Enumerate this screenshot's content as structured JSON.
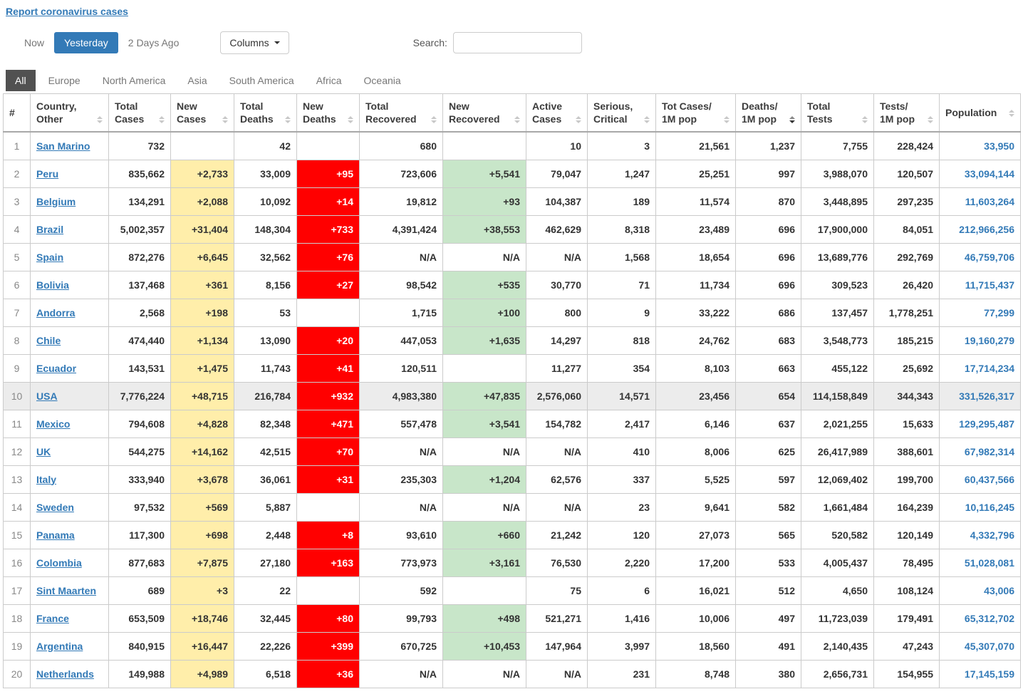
{
  "page": {
    "report_link": "Report coronavirus cases"
  },
  "toolbar": {
    "tabs": [
      {
        "label": "Now",
        "active": false
      },
      {
        "label": "Yesterday",
        "active": true
      },
      {
        "label": "2 Days Ago",
        "active": false
      }
    ],
    "columns_button": "Columns",
    "search_label": "Search:",
    "search_value": ""
  },
  "continents": [
    {
      "label": "All",
      "active": true
    },
    {
      "label": "Europe",
      "active": false
    },
    {
      "label": "North America",
      "active": false
    },
    {
      "label": "Asia",
      "active": false
    },
    {
      "label": "South America",
      "active": false
    },
    {
      "label": "Africa",
      "active": false
    },
    {
      "label": "Oceania",
      "active": false
    }
  ],
  "colors": {
    "accent_blue": "#337ab7",
    "new_cases_bg": "#FFEEAA",
    "new_deaths_bg": "#FF0000",
    "new_recovered_bg": "#C8E6C9",
    "active_tab_bg": "#515151"
  },
  "table": {
    "headers": [
      {
        "key": "rank",
        "line1": "#",
        "line2": "",
        "sortable": false
      },
      {
        "key": "country",
        "line1": "Country,",
        "line2": "Other"
      },
      {
        "key": "total-cases",
        "line1": "Total",
        "line2": "Cases"
      },
      {
        "key": "new-cases",
        "line1": "New",
        "line2": "Cases"
      },
      {
        "key": "total-deaths",
        "line1": "Total",
        "line2": "Deaths"
      },
      {
        "key": "new-deaths",
        "line1": "New",
        "line2": "Deaths"
      },
      {
        "key": "total-recovered",
        "line1": "Total",
        "line2": "Recovered"
      },
      {
        "key": "new-recovered",
        "line1": "New",
        "line2": "Recovered"
      },
      {
        "key": "active-cases",
        "line1": "Active",
        "line2": "Cases"
      },
      {
        "key": "serious-critical",
        "line1": "Serious,",
        "line2": "Critical"
      },
      {
        "key": "tot-cases-1m",
        "line1": "Tot Cases/",
        "line2": "1M pop"
      },
      {
        "key": "deaths-1m",
        "line1": "Deaths/",
        "line2": "1M pop",
        "sorted": "desc"
      },
      {
        "key": "total-tests",
        "line1": "Total",
        "line2": "Tests"
      },
      {
        "key": "tests-1m",
        "line1": "Tests/",
        "line2": "1M pop"
      },
      {
        "key": "population",
        "line1": "Population",
        "line2": ""
      }
    ],
    "rows": [
      {
        "rank": "1",
        "country": "San Marino",
        "total_cases": "732",
        "new_cases": "",
        "total_deaths": "42",
        "new_deaths": "",
        "total_recovered": "680",
        "new_recovered": "",
        "active_cases": "10",
        "serious_critical": "3",
        "cases_per_1m": "21,561",
        "deaths_per_1m": "1,237",
        "total_tests": "7,755",
        "tests_per_1m": "228,424",
        "population": "33,950"
      },
      {
        "rank": "2",
        "country": "Peru",
        "total_cases": "835,662",
        "new_cases": "+2,733",
        "total_deaths": "33,009",
        "new_deaths": "+95",
        "total_recovered": "723,606",
        "new_recovered": "+5,541",
        "active_cases": "79,047",
        "serious_critical": "1,247",
        "cases_per_1m": "25,251",
        "deaths_per_1m": "997",
        "total_tests": "3,988,070",
        "tests_per_1m": "120,507",
        "population": "33,094,144"
      },
      {
        "rank": "3",
        "country": "Belgium",
        "total_cases": "134,291",
        "new_cases": "+2,088",
        "total_deaths": "10,092",
        "new_deaths": "+14",
        "total_recovered": "19,812",
        "new_recovered": "+93",
        "active_cases": "104,387",
        "serious_critical": "189",
        "cases_per_1m": "11,574",
        "deaths_per_1m": "870",
        "total_tests": "3,448,895",
        "tests_per_1m": "297,235",
        "population": "11,603,264"
      },
      {
        "rank": "4",
        "country": "Brazil",
        "total_cases": "5,002,357",
        "new_cases": "+31,404",
        "total_deaths": "148,304",
        "new_deaths": "+733",
        "total_recovered": "4,391,424",
        "new_recovered": "+38,553",
        "active_cases": "462,629",
        "serious_critical": "8,318",
        "cases_per_1m": "23,489",
        "deaths_per_1m": "696",
        "total_tests": "17,900,000",
        "tests_per_1m": "84,051",
        "population": "212,966,256"
      },
      {
        "rank": "5",
        "country": "Spain",
        "total_cases": "872,276",
        "new_cases": "+6,645",
        "total_deaths": "32,562",
        "new_deaths": "+76",
        "total_recovered": "N/A",
        "new_recovered": "N/A",
        "active_cases": "N/A",
        "serious_critical": "1,568",
        "cases_per_1m": "18,654",
        "deaths_per_1m": "696",
        "total_tests": "13,689,776",
        "tests_per_1m": "292,769",
        "population": "46,759,706"
      },
      {
        "rank": "6",
        "country": "Bolivia",
        "total_cases": "137,468",
        "new_cases": "+361",
        "total_deaths": "8,156",
        "new_deaths": "+27",
        "total_recovered": "98,542",
        "new_recovered": "+535",
        "active_cases": "30,770",
        "serious_critical": "71",
        "cases_per_1m": "11,734",
        "deaths_per_1m": "696",
        "total_tests": "309,523",
        "tests_per_1m": "26,420",
        "population": "11,715,437"
      },
      {
        "rank": "7",
        "country": "Andorra",
        "total_cases": "2,568",
        "new_cases": "+198",
        "total_deaths": "53",
        "new_deaths": "",
        "total_recovered": "1,715",
        "new_recovered": "+100",
        "active_cases": "800",
        "serious_critical": "9",
        "cases_per_1m": "33,222",
        "deaths_per_1m": "686",
        "total_tests": "137,457",
        "tests_per_1m": "1,778,251",
        "population": "77,299"
      },
      {
        "rank": "8",
        "country": "Chile",
        "total_cases": "474,440",
        "new_cases": "+1,134",
        "total_deaths": "13,090",
        "new_deaths": "+20",
        "total_recovered": "447,053",
        "new_recovered": "+1,635",
        "active_cases": "14,297",
        "serious_critical": "818",
        "cases_per_1m": "24,762",
        "deaths_per_1m": "683",
        "total_tests": "3,548,773",
        "tests_per_1m": "185,215",
        "population": "19,160,279"
      },
      {
        "rank": "9",
        "country": "Ecuador",
        "total_cases": "143,531",
        "new_cases": "+1,475",
        "total_deaths": "11,743",
        "new_deaths": "+41",
        "total_recovered": "120,511",
        "new_recovered": "",
        "active_cases": "11,277",
        "serious_critical": "354",
        "cases_per_1m": "8,103",
        "deaths_per_1m": "663",
        "total_tests": "455,122",
        "tests_per_1m": "25,692",
        "population": "17,714,234"
      },
      {
        "rank": "10",
        "country": "USA",
        "highlight": true,
        "total_cases": "7,776,224",
        "new_cases": "+48,715",
        "total_deaths": "216,784",
        "new_deaths": "+932",
        "total_recovered": "4,983,380",
        "new_recovered": "+47,835",
        "active_cases": "2,576,060",
        "serious_critical": "14,571",
        "cases_per_1m": "23,456",
        "deaths_per_1m": "654",
        "total_tests": "114,158,849",
        "tests_per_1m": "344,343",
        "population": "331,526,317"
      },
      {
        "rank": "11",
        "country": "Mexico",
        "total_cases": "794,608",
        "new_cases": "+4,828",
        "total_deaths": "82,348",
        "new_deaths": "+471",
        "total_recovered": "557,478",
        "new_recovered": "+3,541",
        "active_cases": "154,782",
        "serious_critical": "2,417",
        "cases_per_1m": "6,146",
        "deaths_per_1m": "637",
        "total_tests": "2,021,255",
        "tests_per_1m": "15,633",
        "population": "129,295,487"
      },
      {
        "rank": "12",
        "country": "UK",
        "total_cases": "544,275",
        "new_cases": "+14,162",
        "total_deaths": "42,515",
        "new_deaths": "+70",
        "total_recovered": "N/A",
        "new_recovered": "N/A",
        "active_cases": "N/A",
        "serious_critical": "410",
        "cases_per_1m": "8,006",
        "deaths_per_1m": "625",
        "total_tests": "26,417,989",
        "tests_per_1m": "388,601",
        "population": "67,982,314"
      },
      {
        "rank": "13",
        "country": "Italy",
        "total_cases": "333,940",
        "new_cases": "+3,678",
        "total_deaths": "36,061",
        "new_deaths": "+31",
        "total_recovered": "235,303",
        "new_recovered": "+1,204",
        "active_cases": "62,576",
        "serious_critical": "337",
        "cases_per_1m": "5,525",
        "deaths_per_1m": "597",
        "total_tests": "12,069,402",
        "tests_per_1m": "199,700",
        "population": "60,437,566"
      },
      {
        "rank": "14",
        "country": "Sweden",
        "total_cases": "97,532",
        "new_cases": "+569",
        "total_deaths": "5,887",
        "new_deaths": "",
        "total_recovered": "N/A",
        "new_recovered": "N/A",
        "active_cases": "N/A",
        "serious_critical": "23",
        "cases_per_1m": "9,641",
        "deaths_per_1m": "582",
        "total_tests": "1,661,484",
        "tests_per_1m": "164,239",
        "population": "10,116,245"
      },
      {
        "rank": "15",
        "country": "Panama",
        "total_cases": "117,300",
        "new_cases": "+698",
        "total_deaths": "2,448",
        "new_deaths": "+8",
        "total_recovered": "93,610",
        "new_recovered": "+660",
        "active_cases": "21,242",
        "serious_critical": "120",
        "cases_per_1m": "27,073",
        "deaths_per_1m": "565",
        "total_tests": "520,582",
        "tests_per_1m": "120,149",
        "population": "4,332,796"
      },
      {
        "rank": "16",
        "country": "Colombia",
        "total_cases": "877,683",
        "new_cases": "+7,875",
        "total_deaths": "27,180",
        "new_deaths": "+163",
        "total_recovered": "773,973",
        "new_recovered": "+3,161",
        "active_cases": "76,530",
        "serious_critical": "2,220",
        "cases_per_1m": "17,200",
        "deaths_per_1m": "533",
        "total_tests": "4,005,437",
        "tests_per_1m": "78,495",
        "population": "51,028,081"
      },
      {
        "rank": "17",
        "country": "Sint Maarten",
        "total_cases": "689",
        "new_cases": "+3",
        "total_deaths": "22",
        "new_deaths": "",
        "total_recovered": "592",
        "new_recovered": "",
        "active_cases": "75",
        "serious_critical": "6",
        "cases_per_1m": "16,021",
        "deaths_per_1m": "512",
        "total_tests": "4,650",
        "tests_per_1m": "108,124",
        "population": "43,006"
      },
      {
        "rank": "18",
        "country": "France",
        "total_cases": "653,509",
        "new_cases": "+18,746",
        "total_deaths": "32,445",
        "new_deaths": "+80",
        "total_recovered": "99,793",
        "new_recovered": "+498",
        "active_cases": "521,271",
        "serious_critical": "1,416",
        "cases_per_1m": "10,006",
        "deaths_per_1m": "497",
        "total_tests": "11,723,039",
        "tests_per_1m": "179,491",
        "population": "65,312,702"
      },
      {
        "rank": "19",
        "country": "Argentina",
        "total_cases": "840,915",
        "new_cases": "+16,447",
        "total_deaths": "22,226",
        "new_deaths": "+399",
        "total_recovered": "670,725",
        "new_recovered": "+10,453",
        "active_cases": "147,964",
        "serious_critical": "3,997",
        "cases_per_1m": "18,560",
        "deaths_per_1m": "491",
        "total_tests": "2,140,435",
        "tests_per_1m": "47,243",
        "population": "45,307,070"
      },
      {
        "rank": "20",
        "country": "Netherlands",
        "total_cases": "149,988",
        "new_cases": "+4,989",
        "total_deaths": "6,518",
        "new_deaths": "+36",
        "total_recovered": "N/A",
        "new_recovered": "N/A",
        "active_cases": "N/A",
        "serious_critical": "231",
        "cases_per_1m": "8,748",
        "deaths_per_1m": "380",
        "total_tests": "2,656,731",
        "tests_per_1m": "154,955",
        "population": "17,145,159"
      }
    ]
  }
}
